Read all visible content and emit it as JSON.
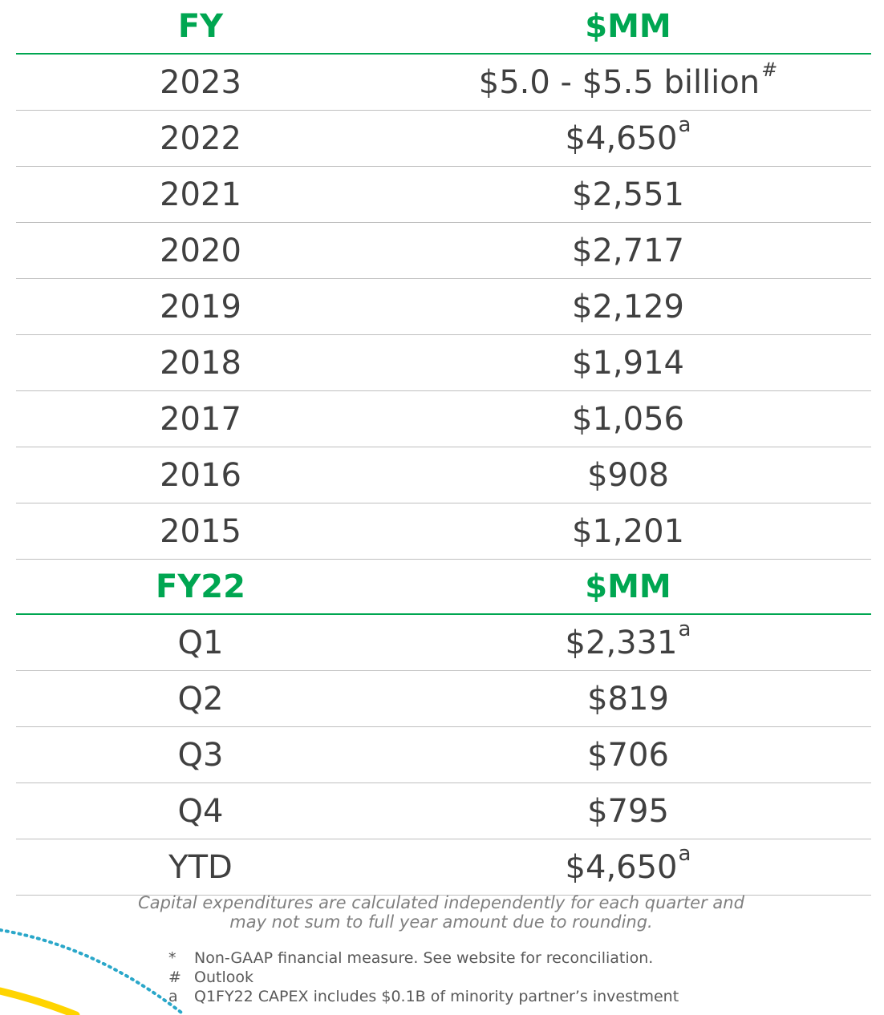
{
  "fy_table": {
    "header": {
      "col1": "FY",
      "col2": "$MM"
    },
    "rows": [
      {
        "year": "2023",
        "value": "$5.0 - $5.5 billion",
        "mark": "#"
      },
      {
        "year": "2022",
        "value": "$4,650",
        "mark": "a"
      },
      {
        "year": "2021",
        "value": "$2,551",
        "mark": ""
      },
      {
        "year": "2020",
        "value": "$2,717",
        "mark": ""
      },
      {
        "year": "2019",
        "value": "$2,129",
        "mark": ""
      },
      {
        "year": "2018",
        "value": "$1,914",
        "mark": ""
      },
      {
        "year": "2017",
        "value": "$1,056",
        "mark": ""
      },
      {
        "year": "2016",
        "value": "$908",
        "mark": ""
      },
      {
        "year": "2015",
        "value": "$1,201",
        "mark": ""
      }
    ]
  },
  "q_table": {
    "header": {
      "col1": "FY22",
      "col2": "$MM"
    },
    "rows": [
      {
        "period": "Q1",
        "value": "$2,331",
        "mark": "a"
      },
      {
        "period": "Q2",
        "value": "$819",
        "mark": ""
      },
      {
        "period": "Q3",
        "value": "$706",
        "mark": ""
      },
      {
        "period": "Q4",
        "value": "$795",
        "mark": ""
      },
      {
        "period": "YTD",
        "value": "$4,650",
        "mark": "a"
      }
    ]
  },
  "note": {
    "line1": "Capital expenditures are calculated independently for each quarter and",
    "line2": "may not sum to full year amount due to rounding."
  },
  "footnotes": [
    {
      "mark": "*",
      "text": "Non-GAAP financial measure. See website for reconciliation."
    },
    {
      "mark": "#",
      "text": "Outlook"
    },
    {
      "mark": "a",
      "text": "Q1FY22 CAPEX includes $0.1B of minority partner’s investment"
    }
  ],
  "colors": {
    "accent_green": "#00a651",
    "body_text": "#404040",
    "divider": "#bfbfbf",
    "decor_yellow": "#ffd400",
    "decor_dots": "#2aa7c9"
  }
}
